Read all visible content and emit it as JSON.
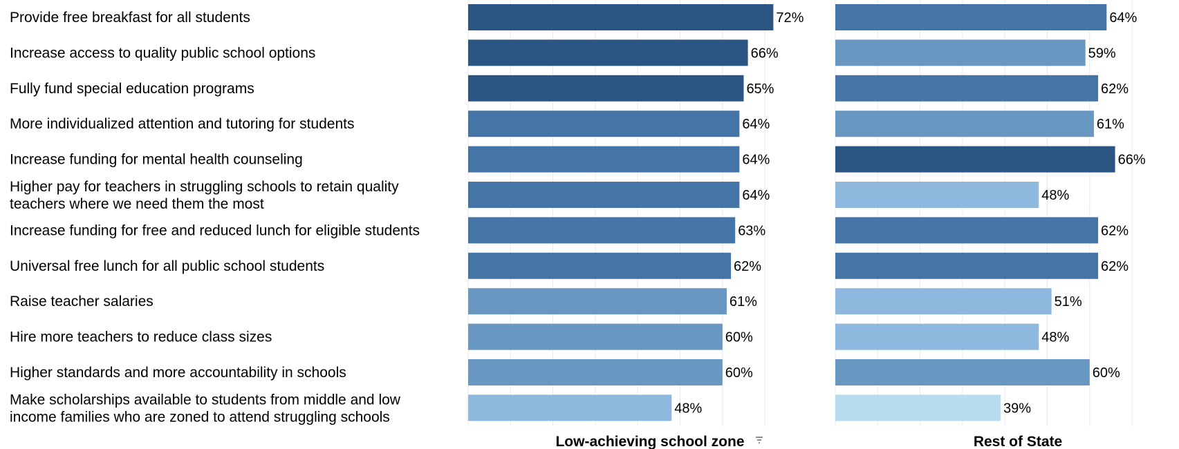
{
  "chart_data": {
    "type": "bar",
    "orientation": "horizontal",
    "grid": true,
    "categories": [
      [
        "Provide free breakfast for all students"
      ],
      [
        "Increase access to quality public school options"
      ],
      [
        "Fully fund special education programs"
      ],
      [
        "More individualized attention and tutoring for students"
      ],
      [
        "Increase funding for mental health counseling"
      ],
      [
        "Higher pay for teachers in struggling schools to retain quality",
        "teachers where we need them the most"
      ],
      [
        "Increase funding for free and reduced lunch for eligible students"
      ],
      [
        "Universal free lunch for all public school students"
      ],
      [
        "Raise teacher salaries"
      ],
      [
        "Hire more teachers to reduce class sizes"
      ],
      [
        "Higher standards and more accountability in schools"
      ],
      [
        "Make scholarships available to students from middle and low",
        "income families who are zoned to attend struggling schools"
      ]
    ],
    "panels": [
      {
        "title": "Low-achieving school zone",
        "sorted_indicator": true,
        "values": [
          72,
          66,
          65,
          64,
          64,
          64,
          63,
          62,
          61,
          60,
          60,
          48
        ],
        "labels": [
          "72%",
          "66%",
          "65%",
          "64%",
          "64%",
          "64%",
          "63%",
          "62%",
          "61%",
          "60%",
          "60%",
          "48%"
        ]
      },
      {
        "title": "Rest of State",
        "sorted_indicator": false,
        "values": [
          64,
          59,
          62,
          61,
          66,
          48,
          62,
          62,
          51,
          48,
          60,
          39
        ],
        "labels": [
          "64%",
          "59%",
          "62%",
          "61%",
          "66%",
          "48%",
          "62%",
          "62%",
          "51%",
          "48%",
          "60%",
          "39%"
        ]
      }
    ],
    "color_scale": [
      {
        "min": 65,
        "color": "#2b5683"
      },
      {
        "min": 62,
        "color": "#4574a7"
      },
      {
        "min": 54,
        "color": "#6897c2"
      },
      {
        "min": 45,
        "color": "#8eb8de"
      },
      {
        "min": 0,
        "color": "#b8dbef"
      }
    ]
  }
}
